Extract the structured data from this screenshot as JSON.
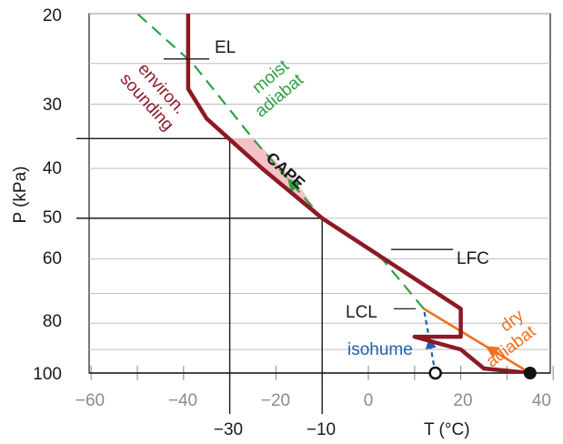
{
  "chart_data": {
    "type": "thermodynamic-diagram",
    "y_axis": {
      "label": "P (kPa)",
      "scale": "log-reversed",
      "range": [
        100,
        20
      ],
      "ticks": [
        "20",
        "30",
        "40",
        "50",
        "60",
        "80",
        "100"
      ]
    },
    "x_axis_top_row": {
      "ticks": [
        "−60",
        "−40",
        "−20",
        "0",
        "20",
        "40"
      ]
    },
    "x_axis_bottom_row": {
      "label": "T (°C)",
      "ticks": [
        "−30",
        "−10"
      ]
    },
    "annotations": {
      "el": "EL",
      "lfc": "LFC",
      "lcl": "LCL",
      "cape": "CAPE",
      "environ_line1": "environ.",
      "environ_line2": "sounding",
      "moist_line1": "moist",
      "moist_line2": "adiabat",
      "dry_line1": "dry",
      "dry_line2": "adiabat",
      "isohume": "isohume"
    },
    "series": {
      "environmental_sounding": {
        "points": [
          [
            35,
            100
          ],
          [
            25,
            98
          ],
          [
            20,
            90
          ],
          [
            10,
            85
          ],
          [
            20,
            85
          ],
          [
            20,
            75
          ],
          [
            -10,
            50
          ],
          [
            -23,
            40
          ],
          [
            -35,
            32
          ],
          [
            -39,
            28
          ],
          [
            -39,
            20
          ]
        ]
      },
      "moist_adiabat": {
        "points": [
          [
            12,
            75
          ],
          [
            3,
            60
          ],
          [
            -10,
            50
          ],
          [
            -25,
            35
          ],
          [
            -38,
            25
          ],
          [
            -50,
            20
          ]
        ]
      },
      "dry_adiabat": {
        "points": [
          [
            35,
            100
          ],
          [
            12,
            75
          ]
        ]
      },
      "isohume": {
        "points": [
          [
            14.5,
            100
          ],
          [
            12,
            75
          ]
        ]
      },
      "surface_parcel": [
        35,
        100
      ],
      "surface_dewpoint": [
        14.5,
        100
      ]
    },
    "colors": {
      "environment": "#8b1a25",
      "moist": "#2ea043",
      "dry": "#f07020",
      "isohume": "#1f5fb0",
      "cape_fill": "#f6c1c6",
      "grid": "#bfbfbf"
    }
  }
}
